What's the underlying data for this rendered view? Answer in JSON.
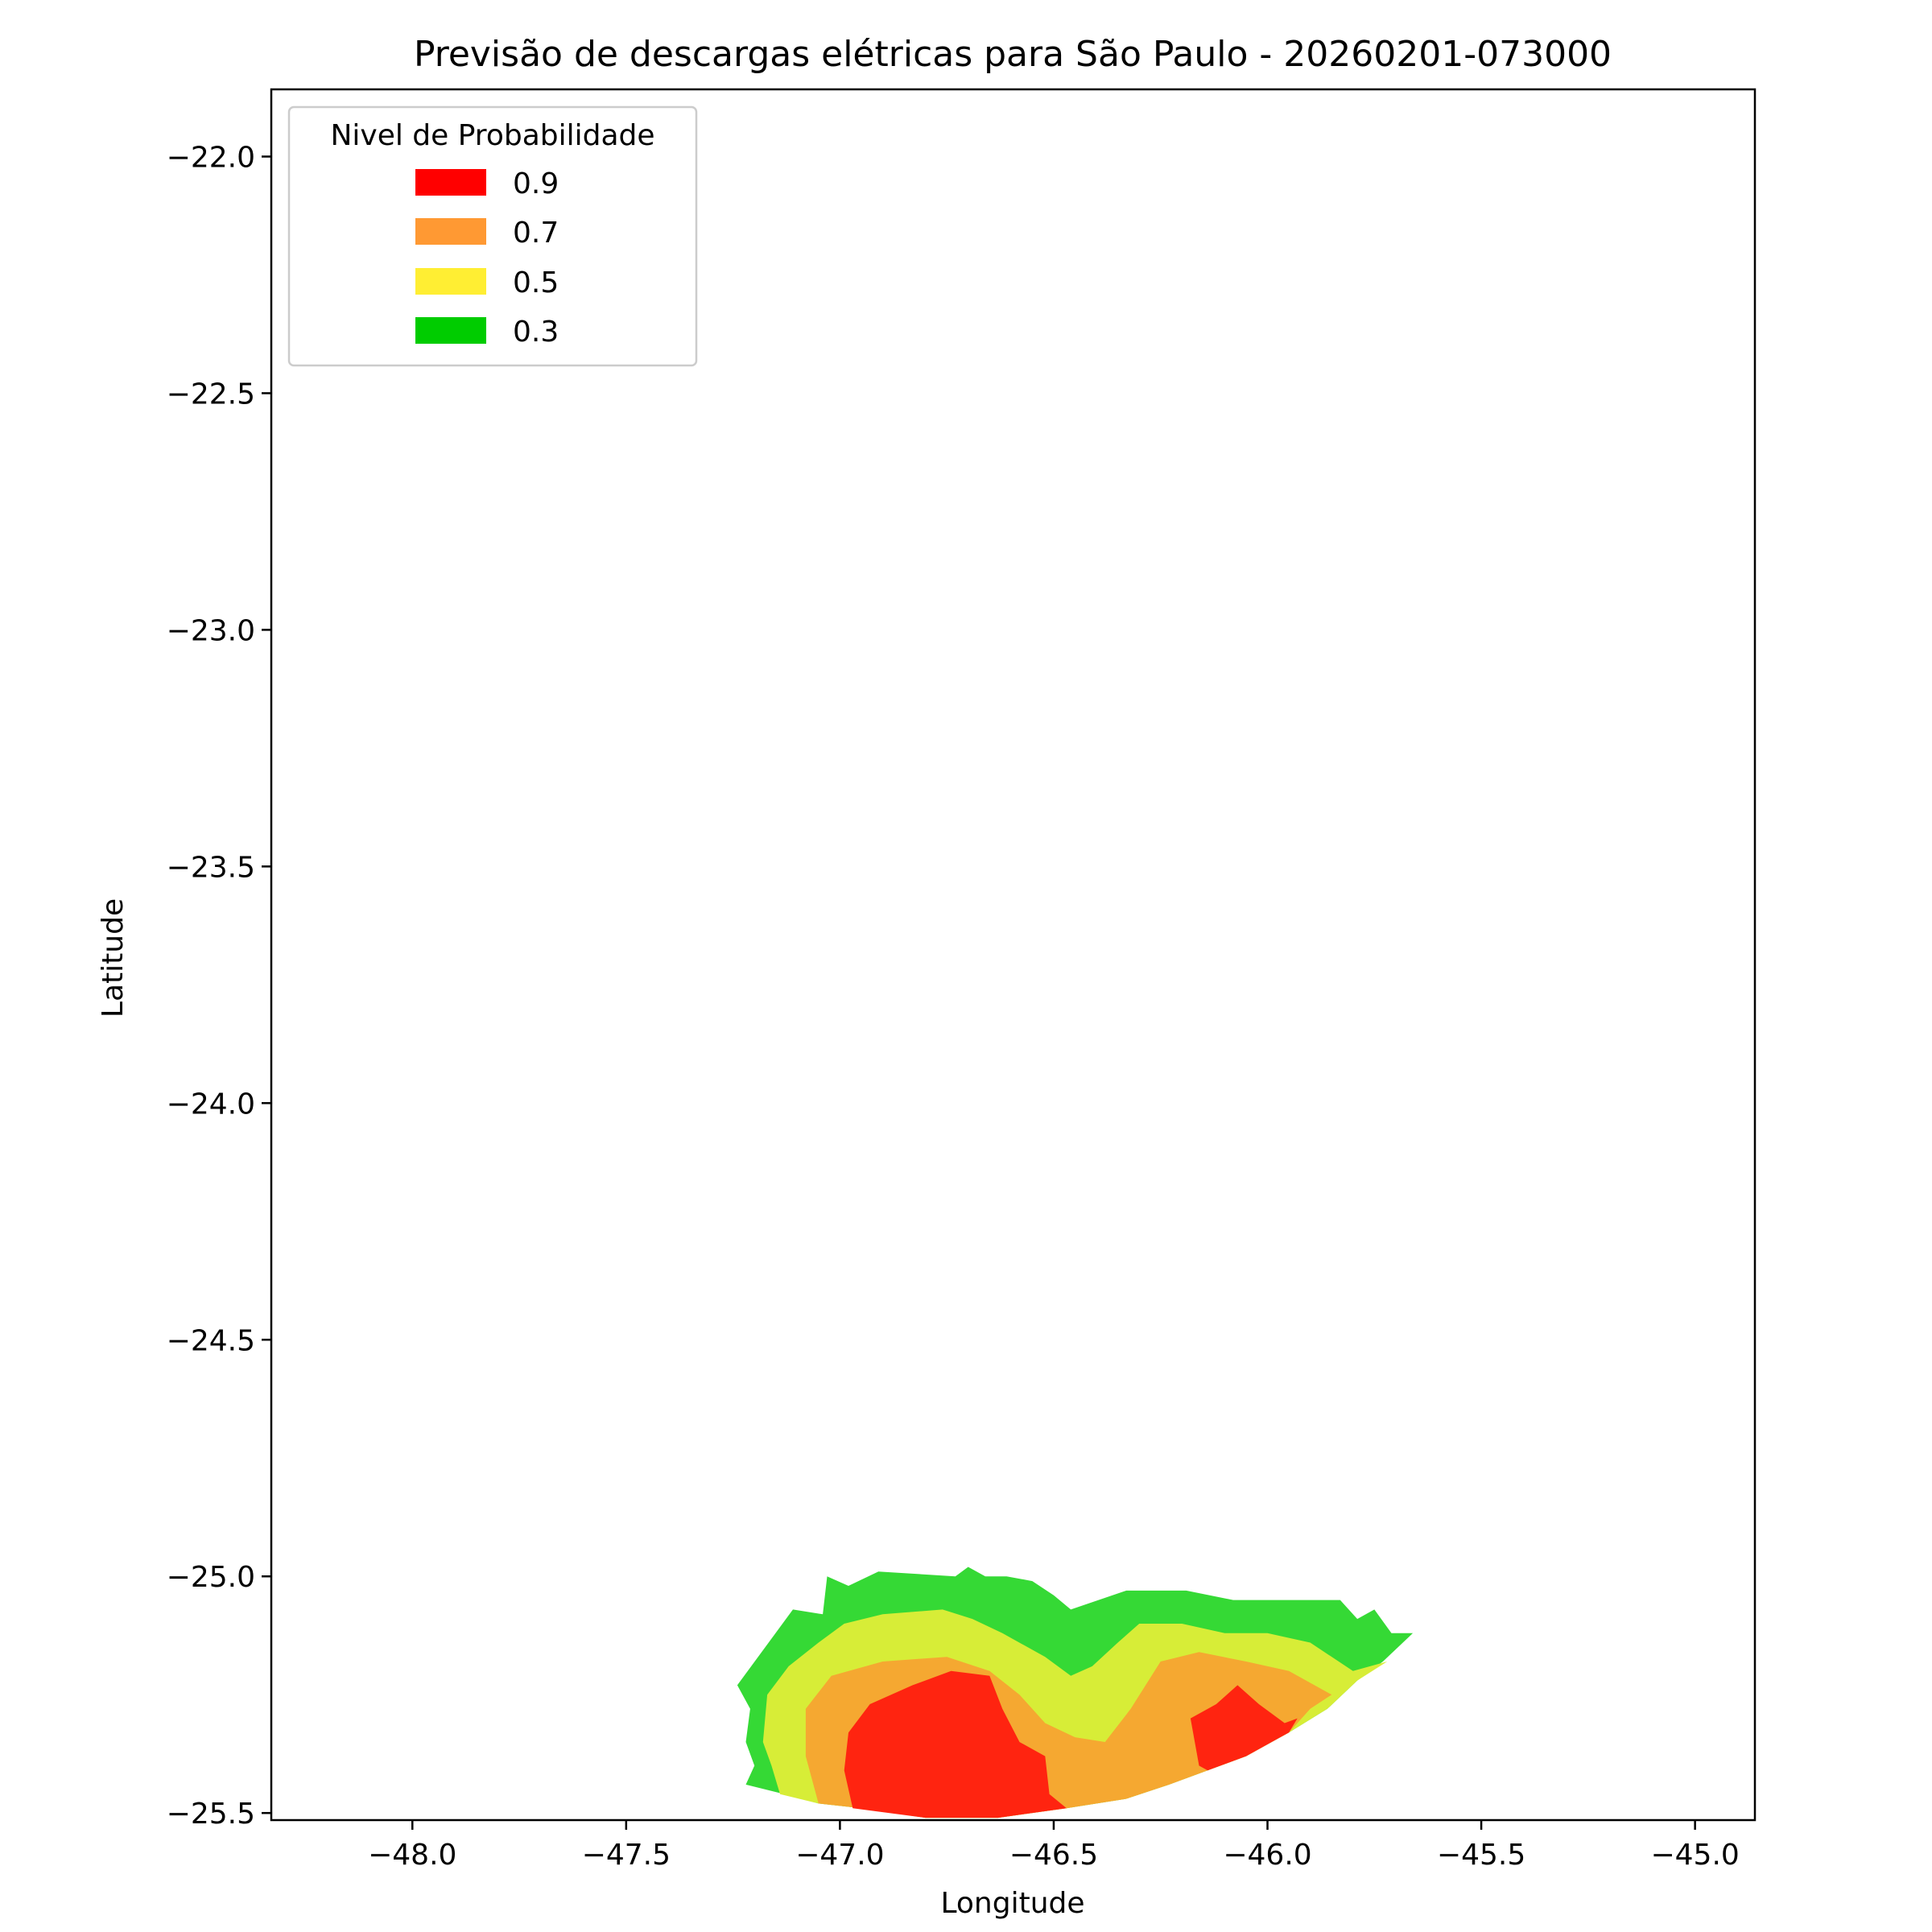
{
  "chart_data": {
    "type": "area",
    "title": "Previsão de descargas elétricas para São Paulo - 20260201-073000",
    "xlabel": "Longitude",
    "ylabel": "Latitude",
    "xlim": [
      -48.33,
      -44.86
    ],
    "ylim": [
      -25.515,
      -21.858
    ],
    "xticks": [
      -48.0,
      -47.5,
      -47.0,
      -46.5,
      -46.0,
      -45.5,
      -45.0
    ],
    "yticks": [
      -22.0,
      -22.5,
      -23.0,
      -23.5,
      -24.0,
      -24.5,
      -25.0,
      -25.5
    ],
    "xtick_labels": [
      "−48.0",
      "−47.5",
      "−47.0",
      "−46.5",
      "−46.0",
      "−45.5",
      "−45.0"
    ],
    "ytick_labels": [
      "−22.0",
      "−22.5",
      "−23.0",
      "−23.5",
      "−24.0",
      "−24.5",
      "−25.0",
      "−25.5"
    ],
    "grid": false,
    "legend": {
      "title": "Nivel de Probabilidade",
      "placement": "top-left",
      "entries": [
        {
          "label": "0.9",
          "color": "#ff0000"
        },
        {
          "label": "0.7",
          "color": "#ff9933"
        },
        {
          "label": "0.5",
          "color": "#ffee33"
        },
        {
          "label": "0.3",
          "color": "#00cc00"
        }
      ]
    },
    "series": [
      {
        "level": 0.3,
        "color": "#35d935",
        "polygon": [
          [
            -47.24,
            -25.23
          ],
          [
            -47.11,
            -25.07
          ],
          [
            -47.04,
            -25.08
          ],
          [
            -47.03,
            -25.0
          ],
          [
            -46.98,
            -25.02
          ],
          [
            -46.91,
            -24.99
          ],
          [
            -46.73,
            -25.0
          ],
          [
            -46.7,
            -24.98
          ],
          [
            -46.66,
            -25.0
          ],
          [
            -46.61,
            -25.0
          ],
          [
            -46.55,
            -25.01
          ],
          [
            -46.5,
            -25.04
          ],
          [
            -46.46,
            -25.07
          ],
          [
            -46.33,
            -25.03
          ],
          [
            -46.19,
            -25.03
          ],
          [
            -46.08,
            -25.05
          ],
          [
            -45.83,
            -25.05
          ],
          [
            -45.79,
            -25.09
          ],
          [
            -45.75,
            -25.07
          ],
          [
            -45.71,
            -25.12
          ],
          [
            -45.66,
            -25.12
          ],
          [
            -45.73,
            -25.18
          ],
          [
            -45.79,
            -25.22
          ],
          [
            -45.86,
            -25.28
          ],
          [
            -45.95,
            -25.33
          ],
          [
            -46.05,
            -25.38
          ],
          [
            -46.14,
            -25.41
          ],
          [
            -46.23,
            -25.44
          ],
          [
            -46.33,
            -25.47
          ],
          [
            -46.47,
            -25.49
          ],
          [
            -46.63,
            -25.51
          ],
          [
            -46.8,
            -25.51
          ],
          [
            -46.95,
            -25.49
          ],
          [
            -47.05,
            -25.48
          ],
          [
            -47.13,
            -25.46
          ],
          [
            -47.22,
            -25.44
          ],
          [
            -47.2,
            -25.4
          ],
          [
            -47.22,
            -25.35
          ],
          [
            -47.21,
            -25.28
          ]
        ]
      },
      {
        "level": 0.5,
        "color": "#d7ed37",
        "polygon": [
          [
            -47.14,
            -25.46
          ],
          [
            -47.16,
            -25.4
          ],
          [
            -47.18,
            -25.35
          ],
          [
            -47.17,
            -25.25
          ],
          [
            -47.12,
            -25.19
          ],
          [
            -47.05,
            -25.14
          ],
          [
            -46.99,
            -25.1
          ],
          [
            -46.9,
            -25.08
          ],
          [
            -46.76,
            -25.07
          ],
          [
            -46.69,
            -25.09
          ],
          [
            -46.62,
            -25.12
          ],
          [
            -46.52,
            -25.17
          ],
          [
            -46.46,
            -25.21
          ],
          [
            -46.41,
            -25.19
          ],
          [
            -46.35,
            -25.14
          ],
          [
            -46.3,
            -25.1
          ],
          [
            -46.2,
            -25.1
          ],
          [
            -46.1,
            -25.12
          ],
          [
            -46.0,
            -25.12
          ],
          [
            -45.9,
            -25.14
          ],
          [
            -45.8,
            -25.2
          ],
          [
            -45.72,
            -25.18
          ],
          [
            -45.79,
            -25.22
          ],
          [
            -45.86,
            -25.28
          ],
          [
            -45.95,
            -25.33
          ],
          [
            -46.05,
            -25.38
          ],
          [
            -46.14,
            -25.41
          ],
          [
            -46.23,
            -25.44
          ],
          [
            -46.33,
            -25.47
          ],
          [
            -46.47,
            -25.49
          ],
          [
            -46.63,
            -25.51
          ],
          [
            -46.8,
            -25.51
          ],
          [
            -46.95,
            -25.49
          ],
          [
            -47.05,
            -25.48
          ]
        ]
      },
      {
        "level": 0.7,
        "color": "#f5a831",
        "polygon": [
          [
            -47.05,
            -25.48
          ],
          [
            -47.08,
            -25.38
          ],
          [
            -47.08,
            -25.28
          ],
          [
            -47.02,
            -25.21
          ],
          [
            -46.9,
            -25.18
          ],
          [
            -46.75,
            -25.17
          ],
          [
            -46.65,
            -25.2
          ],
          [
            -46.58,
            -25.25
          ],
          [
            -46.52,
            -25.31
          ],
          [
            -46.45,
            -25.34
          ],
          [
            -46.38,
            -25.35
          ],
          [
            -46.32,
            -25.28
          ],
          [
            -46.25,
            -25.18
          ],
          [
            -46.16,
            -25.16
          ],
          [
            -46.05,
            -25.18
          ],
          [
            -45.95,
            -25.2
          ],
          [
            -45.85,
            -25.25
          ],
          [
            -45.9,
            -25.28
          ],
          [
            -45.95,
            -25.33
          ],
          [
            -46.05,
            -25.38
          ],
          [
            -46.14,
            -25.41
          ],
          [
            -46.23,
            -25.44
          ],
          [
            -46.33,
            -25.47
          ],
          [
            -46.47,
            -25.49
          ],
          [
            -46.63,
            -25.51
          ],
          [
            -46.8,
            -25.51
          ],
          [
            -46.95,
            -25.49
          ]
        ]
      },
      {
        "level": 0.9,
        "color": "#ff2410",
        "polygon": [
          [
            -46.97,
            -25.49
          ],
          [
            -46.99,
            -25.41
          ],
          [
            -46.98,
            -25.33
          ],
          [
            -46.93,
            -25.27
          ],
          [
            -46.83,
            -25.23
          ],
          [
            -46.74,
            -25.2
          ],
          [
            -46.65,
            -25.21
          ],
          [
            -46.62,
            -25.28
          ],
          [
            -46.58,
            -25.35
          ],
          [
            -46.52,
            -25.38
          ],
          [
            -46.51,
            -25.46
          ],
          [
            -46.47,
            -25.49
          ],
          [
            -46.63,
            -25.51
          ],
          [
            -46.8,
            -25.51
          ]
        ]
      },
      {
        "level": 0.9,
        "color": "#ff2410",
        "polygon": [
          [
            -46.16,
            -25.4
          ],
          [
            -46.18,
            -25.3
          ],
          [
            -46.12,
            -25.27
          ],
          [
            -46.07,
            -25.23
          ],
          [
            -46.02,
            -25.27
          ],
          [
            -45.96,
            -25.31
          ],
          [
            -45.93,
            -25.3
          ],
          [
            -45.95,
            -25.33
          ],
          [
            -46.05,
            -25.38
          ],
          [
            -46.14,
            -25.41
          ]
        ]
      }
    ]
  }
}
